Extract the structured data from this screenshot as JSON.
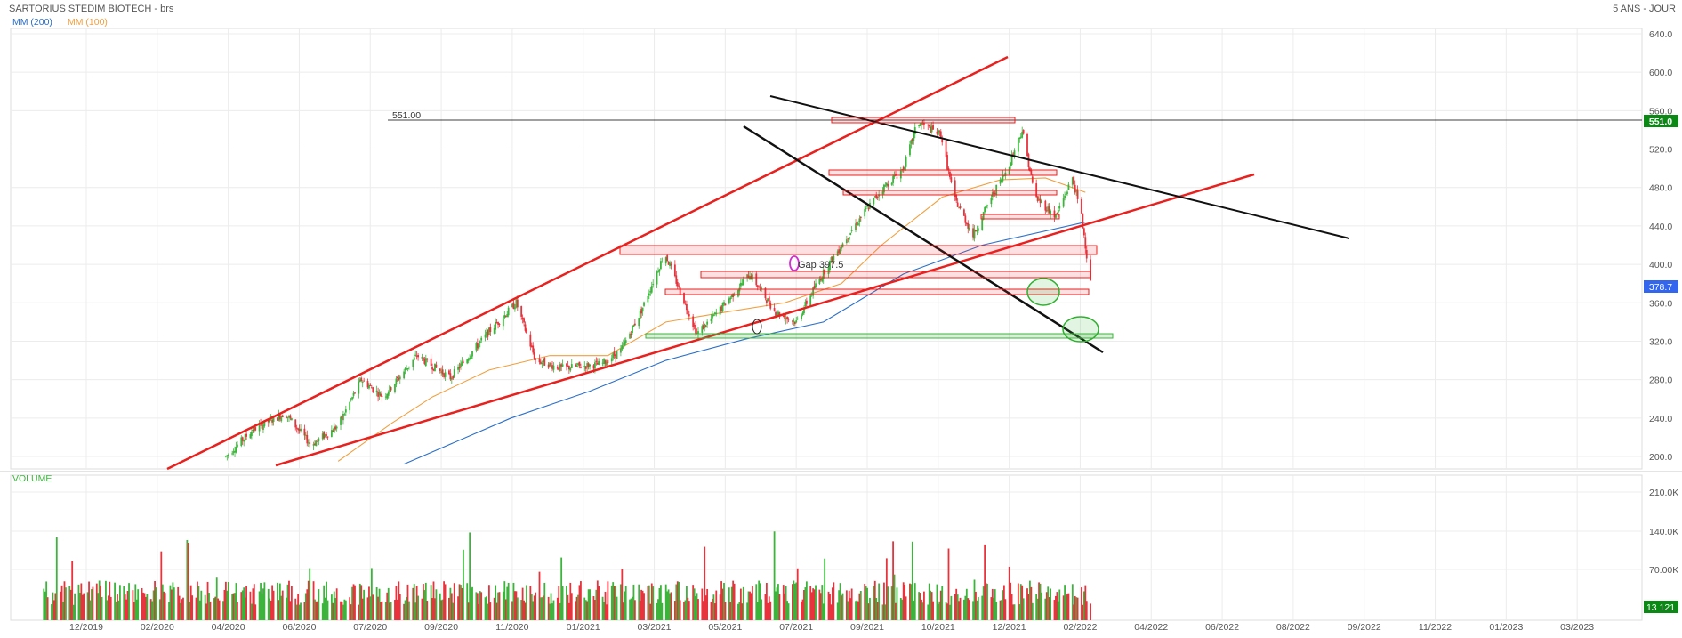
{
  "header": {
    "title": "SARTORIUS STEDIM BIOTECH - brs",
    "timeframe": "5 ANS - JOUR",
    "ma200_label": "MM (200)",
    "ma100_label": "MM (100)",
    "volume_label": "VOLUME"
  },
  "colors": {
    "up": "#3cb43c",
    "down": "#e8323c",
    "ma200": "#2a6fc9",
    "ma100": "#f0a040",
    "trendline_red": "#e8201e",
    "trendline_black": "#111111",
    "last_price_bg": "#3366ee",
    "resistance_bg": "#0a8a14",
    "volume_tag_bg": "#0a8a14"
  },
  "annotations": {
    "resistance_label": "551.00",
    "gap_label": "Gap 397.5"
  },
  "chart_data": {
    "type": "candlestick",
    "x_tick_labels": [
      "12/2019",
      "02/2020",
      "04/2020",
      "06/2020",
      "07/2020",
      "09/2020",
      "11/2020",
      "01/2021",
      "03/2021",
      "05/2021",
      "07/2021",
      "09/2021",
      "10/2021",
      "12/2021",
      "02/2022",
      "04/2022",
      "06/2022",
      "08/2022",
      "09/2022",
      "11/2022",
      "01/2023",
      "03/2023"
    ],
    "y_ticks": [
      200.0,
      240.0,
      280.0,
      320.0,
      360.0,
      400.0,
      440.0,
      480.0,
      520.0,
      560.0,
      600.0,
      640.0
    ],
    "ylim": [
      190,
      650
    ],
    "last_price": "378.7",
    "resistance_level": "551.0",
    "price_path": [
      [
        "2020-03-25",
        200
      ],
      [
        "2020-04-15",
        228
      ],
      [
        "2020-05-10",
        245
      ],
      [
        "2020-05-30",
        212
      ],
      [
        "2020-06-20",
        232
      ],
      [
        "2020-07-08",
        280
      ],
      [
        "2020-07-25",
        262
      ],
      [
        "2020-08-20",
        305
      ],
      [
        "2020-09-15",
        282
      ],
      [
        "2020-10-15",
        330
      ],
      [
        "2020-11-05",
        360
      ],
      [
        "2020-11-20",
        300
      ],
      [
        "2020-12-10",
        292
      ],
      [
        "2021-01-10",
        296
      ],
      [
        "2021-01-25",
        310
      ],
      [
        "2021-02-10",
        352
      ],
      [
        "2021-02-28",
        412
      ],
      [
        "2021-03-15",
        362
      ],
      [
        "2021-03-25",
        328
      ],
      [
        "2021-04-10",
        350
      ],
      [
        "2021-05-05",
        390
      ],
      [
        "2021-05-25",
        350
      ],
      [
        "2021-06-10",
        340
      ],
      [
        "2021-06-25",
        378
      ],
      [
        "2021-07-05",
        400
      ],
      [
        "2021-07-25",
        440
      ],
      [
        "2021-08-15",
        478
      ],
      [
        "2021-09-01",
        500
      ],
      [
        "2021-09-12",
        548
      ],
      [
        "2021-09-30",
        535
      ],
      [
        "2021-10-10",
        470
      ],
      [
        "2021-10-25",
        430
      ],
      [
        "2021-11-08",
        470
      ],
      [
        "2021-11-20",
        498
      ],
      [
        "2021-12-02",
        540
      ],
      [
        "2021-12-12",
        470
      ],
      [
        "2021-12-28",
        450
      ],
      [
        "2022-01-10",
        490
      ],
      [
        "2022-01-17",
        450
      ],
      [
        "2022-01-24",
        380
      ]
    ],
    "ma100_path": [
      [
        "2020-06-20",
        195
      ],
      [
        "2020-08-01",
        235
      ],
      [
        "2020-09-01",
        262
      ],
      [
        "2020-10-15",
        290
      ],
      [
        "2020-12-01",
        305
      ],
      [
        "2021-01-15",
        305
      ],
      [
        "2021-03-01",
        340
      ],
      [
        "2021-04-15",
        350
      ],
      [
        "2021-06-01",
        360
      ],
      [
        "2021-07-15",
        380
      ],
      [
        "2021-08-15",
        420
      ],
      [
        "2021-10-01",
        470
      ],
      [
        "2021-11-15",
        488
      ],
      [
        "2021-12-20",
        490
      ],
      [
        "2022-01-20",
        475
      ]
    ],
    "ma200_path": [
      [
        "2020-08-10",
        192
      ],
      [
        "2020-11-01",
        240
      ],
      [
        "2021-01-01",
        268
      ],
      [
        "2021-03-01",
        300
      ],
      [
        "2021-05-01",
        322
      ],
      [
        "2021-07-01",
        340
      ],
      [
        "2021-09-01",
        390
      ],
      [
        "2021-11-01",
        420
      ],
      [
        "2022-01-20",
        444
      ]
    ],
    "volume": {
      "y_ticks": [
        "70.00K",
        "140.0K",
        "210.0K"
      ],
      "last_volume": "13 121"
    }
  }
}
